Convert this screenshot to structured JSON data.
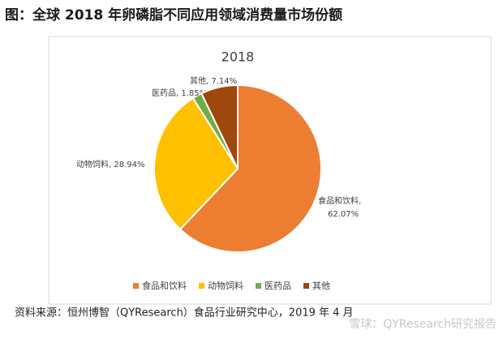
{
  "header": {
    "title": "图：全球 2018 年卵磷脂不同应用领域消费量市场份额"
  },
  "chart_data": {
    "type": "pie",
    "title": "2018",
    "categories": [
      "食品和饮料",
      "动物饲料",
      "医药品",
      "其他"
    ],
    "values": [
      62.07,
      28.94,
      1.85,
      7.14
    ],
    "value_labels": [
      "食品和饮料, 62.07%",
      "动物饲料, 28.94%",
      "医药品, 1.85%",
      "其他, 7.14%"
    ],
    "colors": [
      "#ed7d31",
      "#ffc000",
      "#70ad47",
      "#9e480e"
    ],
    "legend": "bottom"
  },
  "footer": {
    "source": "资料来源：恒州博智（QYResearch）食品行业研究中心，2019 年 4 月",
    "watermark": "雪球：QYResearch研究报告"
  }
}
